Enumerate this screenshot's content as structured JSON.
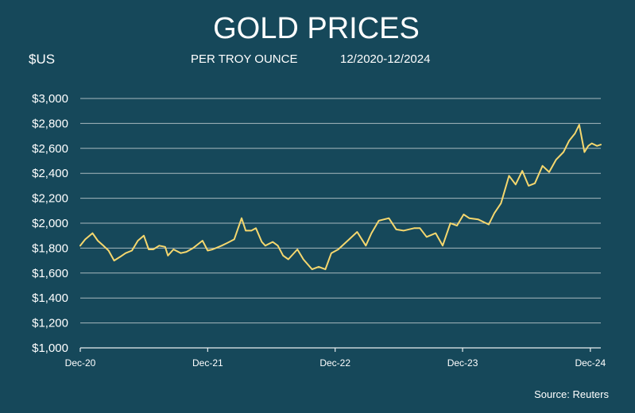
{
  "chart_data": {
    "type": "line",
    "title": "GOLD PRICES",
    "subtitle": "PER TROY OUNCE",
    "date_range": "12/2020-12/2024",
    "ylabel": "$US",
    "source": "Source: Reuters",
    "ylim": [
      1000,
      3000
    ],
    "yticks": [
      1000,
      1200,
      1400,
      1600,
      1800,
      2000,
      2200,
      2400,
      2600,
      2800,
      3000
    ],
    "ytick_labels": [
      "$1,000",
      "$1,200",
      "$1,400",
      "$1,600",
      "$1,800",
      "$2,000",
      "$2,200",
      "$2,400",
      "$2,600",
      "$2,800",
      "$3,000"
    ],
    "xticks": [
      "2020-12-01",
      "2021-12-01",
      "2022-12-01",
      "2023-12-01",
      "2024-12-01"
    ],
    "xtick_labels": [
      "Dec-20",
      "Dec-21",
      "Dec-22",
      "Dec-23",
      "Dec-24"
    ],
    "grid": true,
    "line_color": "#f5d76e",
    "series": [
      {
        "x": [
          "2020-12-01",
          "2020-12-15",
          "2021-01-05",
          "2021-01-20",
          "2021-02-05",
          "2021-02-20",
          "2021-03-08",
          "2021-03-25",
          "2021-04-10",
          "2021-04-28",
          "2021-05-15",
          "2021-06-01",
          "2021-06-15",
          "2021-06-28",
          "2021-07-15",
          "2021-08-01",
          "2021-08-09",
          "2021-08-25",
          "2021-09-15",
          "2021-10-01",
          "2021-10-20",
          "2021-11-16",
          "2021-12-01",
          "2021-12-15",
          "2022-01-10",
          "2022-01-25",
          "2022-02-15",
          "2022-03-08",
          "2022-03-20",
          "2022-04-05",
          "2022-04-18",
          "2022-05-05",
          "2022-05-15",
          "2022-06-05",
          "2022-06-20",
          "2022-07-05",
          "2022-07-20",
          "2022-08-15",
          "2022-09-01",
          "2022-09-26",
          "2022-10-15",
          "2022-11-03",
          "2022-11-20",
          "2022-12-10",
          "2023-01-10",
          "2023-02-02",
          "2023-02-27",
          "2023-03-15",
          "2023-04-05",
          "2023-05-04",
          "2023-05-25",
          "2023-06-15",
          "2023-07-15",
          "2023-08-01",
          "2023-08-20",
          "2023-09-15",
          "2023-10-05",
          "2023-10-27",
          "2023-11-15",
          "2023-12-04",
          "2023-12-20",
          "2024-01-15",
          "2024-02-14",
          "2024-03-01",
          "2024-03-20",
          "2024-04-12",
          "2024-05-01",
          "2024-05-20",
          "2024-06-07",
          "2024-06-25",
          "2024-07-17",
          "2024-08-05",
          "2024-08-25",
          "2024-09-15",
          "2024-10-01",
          "2024-10-18",
          "2024-10-30",
          "2024-11-14",
          "2024-11-25",
          "2024-12-05",
          "2024-12-20",
          "2024-12-31"
        ],
        "y": [
          1820,
          1870,
          1920,
          1860,
          1820,
          1780,
          1700,
          1730,
          1760,
          1780,
          1860,
          1900,
          1790,
          1790,
          1820,
          1810,
          1740,
          1790,
          1760,
          1770,
          1800,
          1860,
          1780,
          1790,
          1820,
          1840,
          1870,
          2040,
          1940,
          1940,
          1960,
          1850,
          1820,
          1850,
          1820,
          1740,
          1710,
          1790,
          1710,
          1630,
          1650,
          1630,
          1760,
          1790,
          1870,
          1930,
          1820,
          1920,
          2020,
          2040,
          1950,
          1940,
          1960,
          1960,
          1890,
          1920,
          1820,
          2000,
          1980,
          2070,
          2040,
          2030,
          1990,
          2080,
          2160,
          2380,
          2310,
          2420,
          2300,
          2320,
          2460,
          2410,
          2510,
          2570,
          2660,
          2720,
          2790,
          2570,
          2620,
          2640,
          2620,
          2630
        ]
      }
    ]
  }
}
